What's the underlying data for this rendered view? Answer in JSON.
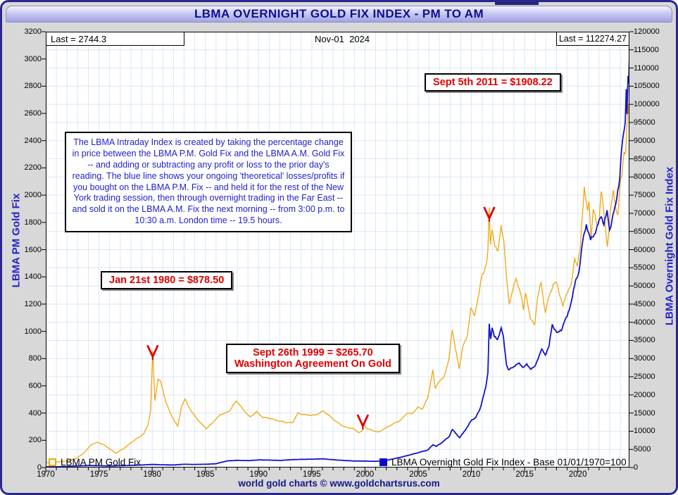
{
  "title_bar": {
    "title": "LBMA OVERNIGHT GOLD FIX INDEX - PM TO AM"
  },
  "top_header": {
    "last_left": "Last = 2744.3",
    "date": "Nov-01  2024",
    "last_right": "Last = 112274.27"
  },
  "info_box": {
    "text": "The LBMA Intraday Index is created by taking the percentage change in price between the LBMA P.M. Gold Fix and the LBMA A.M. Gold Fix -- and adding or subtracting any profit or loss to the prior day's reading. The blue line shows your ongoing 'theoretical' losses/profits if you bought on the LBMA P.M. Fix -- and held it for the rest of the New York trading session, then through overnight trading in the Far East -- and sold it on the LBMA A.M. Fix the next morning -- from 3:00 p.m. to 10:30 a.m. London time -- 19.5 hours."
  },
  "legend": {
    "pm": {
      "label": "LBMA PM Gold Fix"
    },
    "overnight": {
      "label": "LBMA Overnight Gold Fix Index - Base 01/01/1970=100"
    }
  },
  "footer": {
    "text": "world gold charts © www.goldchartsrus.com"
  },
  "colors": {
    "gold_line": "#F2A50C",
    "blue_line": "#1212CC",
    "annotation_red": "#E00000",
    "navy": "#16168C",
    "grid": "#DCE7F2",
    "axis_title_blue": "#2222CC"
  },
  "chart_data": {
    "type": "line",
    "title": "LBMA OVERNIGHT GOLD FIX INDEX - PM TO AM",
    "as_of_date": "Nov-01 2024",
    "x_range": [
      1970,
      2024.85
    ],
    "x_tick_years": [
      1970,
      1975,
      1980,
      1985,
      1990,
      1995,
      2000,
      2005,
      2010,
      2015,
      2020
    ],
    "left_axis": {
      "label": "LBMA PM Gold Fix",
      "range": [
        0,
        3200
      ],
      "tick_step": 200
    },
    "right_axis": {
      "label": "LBMA Overnight Gold Fix Index",
      "range": [
        0,
        120000
      ],
      "tick_step": 5000
    },
    "grid": true,
    "legend_position": "bottom-inside",
    "last_values": {
      "lbma_pm_gold_fix": 2744.3,
      "overnight_index": 112274.27
    },
    "annotations": [
      {
        "text": "Sept 5th 2011 = $1908.22",
        "marker": {
          "year": 2011.68,
          "value": 1830
        }
      },
      {
        "text": "Jan 21st 1980 = $878.50",
        "marker": {
          "year": 1980.05,
          "value": 815
        }
      },
      {
        "text": "Sept 26th 1999 = $265.70",
        "text2": "Washington Agreement On Gold",
        "marker": {
          "year": 1999.8,
          "value": 305
        }
      }
    ],
    "series": [
      {
        "name": "LBMA PM Gold Fix",
        "axis": "left",
        "color": "#F2A50C",
        "points": [
          [
            1970,
            35
          ],
          [
            1971,
            40
          ],
          [
            1972,
            48
          ],
          [
            1972.8,
            65
          ],
          [
            1973.5,
            100
          ],
          [
            1974.3,
            170
          ],
          [
            1974.9,
            185
          ],
          [
            1975.5,
            165
          ],
          [
            1976.6,
            105
          ],
          [
            1977.5,
            150
          ],
          [
            1978.5,
            210
          ],
          [
            1979.2,
            245
          ],
          [
            1979.6,
            310
          ],
          [
            1979.85,
            420
          ],
          [
            1980.05,
            850
          ],
          [
            1980.25,
            490
          ],
          [
            1980.55,
            650
          ],
          [
            1980.8,
            630
          ],
          [
            1981.3,
            480
          ],
          [
            1981.7,
            400
          ],
          [
            1982.4,
            300
          ],
          [
            1982.75,
            450
          ],
          [
            1983.1,
            500
          ],
          [
            1983.7,
            410
          ],
          [
            1984.4,
            340
          ],
          [
            1985.1,
            285
          ],
          [
            1985.7,
            330
          ],
          [
            1986.4,
            390
          ],
          [
            1986.9,
            400
          ],
          [
            1987.3,
            420
          ],
          [
            1987.9,
            490
          ],
          [
            1988.5,
            430
          ],
          [
            1989.2,
            370
          ],
          [
            1989.8,
            410
          ],
          [
            1990.4,
            370
          ],
          [
            1991.1,
            360
          ],
          [
            1992.0,
            340
          ],
          [
            1992.7,
            330
          ],
          [
            1993.2,
            330
          ],
          [
            1993.7,
            400
          ],
          [
            1994.5,
            385
          ],
          [
            1995.3,
            385
          ],
          [
            1996.1,
            415
          ],
          [
            1996.8,
            370
          ],
          [
            1997.5,
            325
          ],
          [
            1998.2,
            295
          ],
          [
            1998.8,
            290
          ],
          [
            1999.4,
            258
          ],
          [
            1999.73,
            265.7
          ],
          [
            1999.85,
            320
          ],
          [
            2000.2,
            285
          ],
          [
            2000.8,
            270
          ],
          [
            2001.25,
            258
          ],
          [
            2001.7,
            280
          ],
          [
            2002.3,
            305
          ],
          [
            2002.9,
            330
          ],
          [
            2003.4,
            350
          ],
          [
            2003.95,
            400
          ],
          [
            2004.4,
            395
          ],
          [
            2004.95,
            440
          ],
          [
            2005.4,
            430
          ],
          [
            2005.9,
            510
          ],
          [
            2006.37,
            715
          ],
          [
            2006.6,
            580
          ],
          [
            2006.9,
            630
          ],
          [
            2007.4,
            660
          ],
          [
            2007.9,
            800
          ],
          [
            2008.2,
            1010
          ],
          [
            2008.5,
            880
          ],
          [
            2008.85,
            720
          ],
          [
            2009.2,
            900
          ],
          [
            2009.6,
            950
          ],
          [
            2009.95,
            1180
          ],
          [
            2010.3,
            1110
          ],
          [
            2010.6,
            1240
          ],
          [
            2010.95,
            1400
          ],
          [
            2011.15,
            1420
          ],
          [
            2011.4,
            1500
          ],
          [
            2011.55,
            1600
          ],
          [
            2011.68,
            1908.22
          ],
          [
            2011.78,
            1620
          ],
          [
            2011.95,
            1750
          ],
          [
            2012.2,
            1640
          ],
          [
            2012.5,
            1580
          ],
          [
            2012.8,
            1780
          ],
          [
            2013.05,
            1660
          ],
          [
            2013.3,
            1390
          ],
          [
            2013.55,
            1200
          ],
          [
            2013.9,
            1310
          ],
          [
            2014.2,
            1380
          ],
          [
            2014.6,
            1290
          ],
          [
            2014.9,
            1150
          ],
          [
            2015.1,
            1290
          ],
          [
            2015.55,
            1085
          ],
          [
            2015.95,
            1050
          ],
          [
            2016.2,
            1240
          ],
          [
            2016.55,
            1360
          ],
          [
            2016.95,
            1130
          ],
          [
            2017.3,
            1260
          ],
          [
            2017.7,
            1340
          ],
          [
            2018.05,
            1355
          ],
          [
            2018.6,
            1180
          ],
          [
            2018.95,
            1280
          ],
          [
            2019.4,
            1340
          ],
          [
            2019.7,
            1550
          ],
          [
            2019.95,
            1480
          ],
          [
            2020.2,
            1580
          ],
          [
            2020.6,
            2060
          ],
          [
            2020.9,
            1870
          ],
          [
            2021.05,
            1950
          ],
          [
            2021.25,
            1690
          ],
          [
            2021.45,
            1900
          ],
          [
            2021.8,
            1780
          ],
          [
            2022.0,
            1820
          ],
          [
            2022.2,
            2040
          ],
          [
            2022.5,
            1830
          ],
          [
            2022.78,
            1630
          ],
          [
            2023.05,
            1870
          ],
          [
            2023.35,
            2040
          ],
          [
            2023.55,
            1920
          ],
          [
            2023.78,
            1840
          ],
          [
            2023.95,
            2060
          ],
          [
            2024.15,
            2160
          ],
          [
            2024.35,
            2330
          ],
          [
            2024.5,
            2310
          ],
          [
            2024.62,
            2500
          ],
          [
            2024.72,
            2650
          ],
          [
            2024.78,
            2580
          ],
          [
            2024.84,
            2744.3
          ]
        ]
      },
      {
        "name": "LBMA Overnight Gold Fix Index - Base 01/01/1970=100",
        "axis": "right",
        "color": "#1212CC",
        "points": [
          [
            1970,
            100
          ],
          [
            1971,
            200
          ],
          [
            1972,
            300
          ],
          [
            1973,
            450
          ],
          [
            1974,
            550
          ],
          [
            1975,
            500
          ],
          [
            1976,
            430
          ],
          [
            1977,
            500
          ],
          [
            1978,
            600
          ],
          [
            1979,
            700
          ],
          [
            1980,
            850
          ],
          [
            1981,
            750
          ],
          [
            1982,
            700
          ],
          [
            1983,
            900
          ],
          [
            1984,
            850
          ],
          [
            1985,
            900
          ],
          [
            1986,
            1050
          ],
          [
            1987,
            1800
          ],
          [
            1988,
            2000
          ],
          [
            1989,
            1900
          ],
          [
            1990,
            2100
          ],
          [
            1991,
            2050
          ],
          [
            1992,
            1950
          ],
          [
            1993,
            2150
          ],
          [
            1994,
            2250
          ],
          [
            1995,
            2300
          ],
          [
            1996,
            2400
          ],
          [
            1997,
            2150
          ],
          [
            1998,
            1950
          ],
          [
            1999,
            1800
          ],
          [
            2000,
            1780
          ],
          [
            2001,
            1700
          ],
          [
            2002,
            1950
          ],
          [
            2003,
            2600
          ],
          [
            2004,
            3300
          ],
          [
            2005,
            4100
          ],
          [
            2005.9,
            4800
          ],
          [
            2006.4,
            6300
          ],
          [
            2006.7,
            5800
          ],
          [
            2007.2,
            6800
          ],
          [
            2007.9,
            8500
          ],
          [
            2008.2,
            10500
          ],
          [
            2008.6,
            9200
          ],
          [
            2008.9,
            8200
          ],
          [
            2009.3,
            9800
          ],
          [
            2009.7,
            11500
          ],
          [
            2010.0,
            13000
          ],
          [
            2010.4,
            13800
          ],
          [
            2010.8,
            16000
          ],
          [
            2011.1,
            19500
          ],
          [
            2011.35,
            22000
          ],
          [
            2011.55,
            26000
          ],
          [
            2011.68,
            40000
          ],
          [
            2011.8,
            35500
          ],
          [
            2011.95,
            38500
          ],
          [
            2012.15,
            36000
          ],
          [
            2012.45,
            35500
          ],
          [
            2012.8,
            38200
          ],
          [
            2013.0,
            36000
          ],
          [
            2013.3,
            28500
          ],
          [
            2013.5,
            26800
          ],
          [
            2013.8,
            27500
          ],
          [
            2014.1,
            28200
          ],
          [
            2014.5,
            28600
          ],
          [
            2014.9,
            27600
          ],
          [
            2015.2,
            28200
          ],
          [
            2015.6,
            27200
          ],
          [
            2015.95,
            27600
          ],
          [
            2016.3,
            30500
          ],
          [
            2016.6,
            32500
          ],
          [
            2016.95,
            31000
          ],
          [
            2017.3,
            33500
          ],
          [
            2017.6,
            39300
          ],
          [
            2018.1,
            36800
          ],
          [
            2018.45,
            38000
          ],
          [
            2018.7,
            40000
          ],
          [
            2019.0,
            41500
          ],
          [
            2019.4,
            46000
          ],
          [
            2019.8,
            51500
          ],
          [
            2020.1,
            54000
          ],
          [
            2020.45,
            62000
          ],
          [
            2020.8,
            67000
          ],
          [
            2021.2,
            62300
          ],
          [
            2021.55,
            64500
          ],
          [
            2021.9,
            66800
          ],
          [
            2022.2,
            69500
          ],
          [
            2022.45,
            67000
          ],
          [
            2022.75,
            70000
          ],
          [
            2023.0,
            65600
          ],
          [
            2023.3,
            69500
          ],
          [
            2023.55,
            72000
          ],
          [
            2023.75,
            76500
          ],
          [
            2023.95,
            80300
          ],
          [
            2024.1,
            86900
          ],
          [
            2024.3,
            91400
          ],
          [
            2024.45,
            95000
          ],
          [
            2024.55,
            105000
          ],
          [
            2024.62,
            98500
          ],
          [
            2024.72,
            108000
          ],
          [
            2024.78,
            105500
          ],
          [
            2024.84,
            112274.27
          ]
        ]
      }
    ]
  }
}
